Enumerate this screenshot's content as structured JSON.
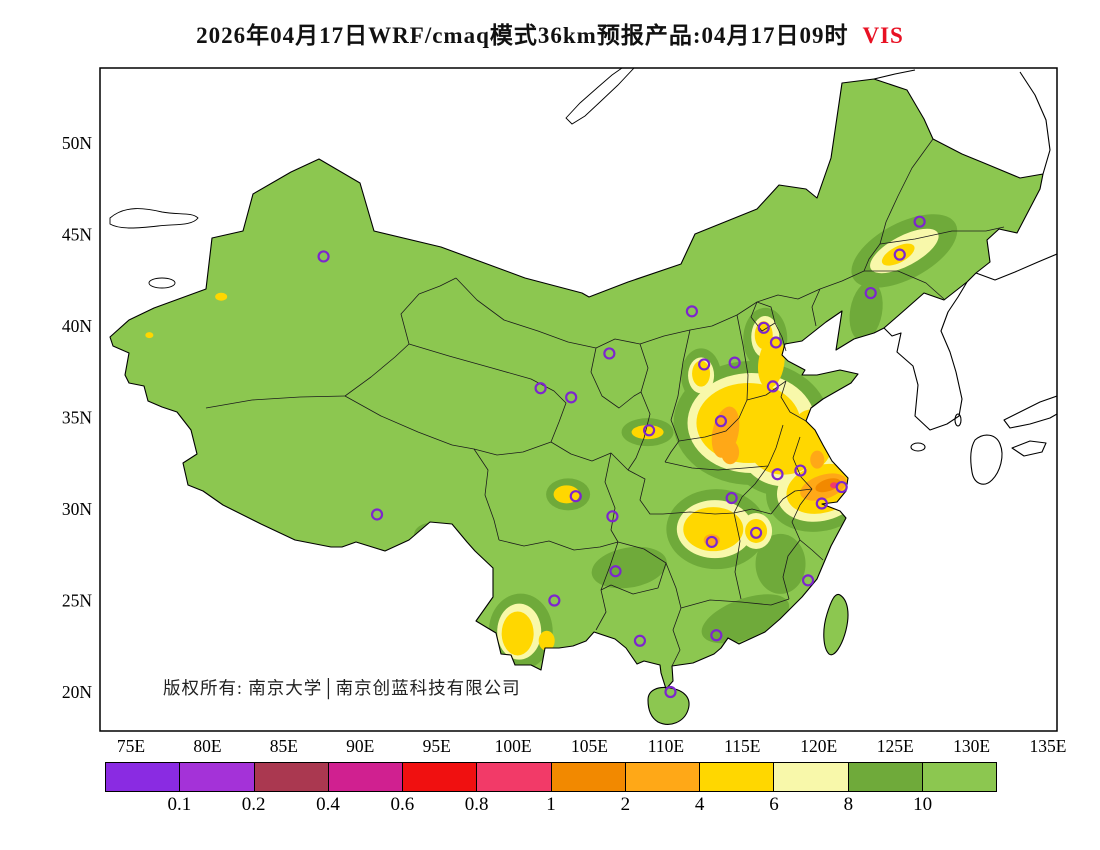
{
  "title": {
    "text": "2026年04月17日WRF/cmaq模式36km预报产品:04月17日09时",
    "variable": "VIS",
    "variable_color": "#e81123"
  },
  "copyright": "版权所有: 南京大学│南京创蓝科技有限公司",
  "axes": {
    "lat": [
      "50N",
      "45N",
      "40N",
      "35N",
      "30N",
      "25N",
      "20N"
    ],
    "lon": [
      "75E",
      "80E",
      "85E",
      "90E",
      "95E",
      "100E",
      "105E",
      "110E",
      "115E",
      "120E",
      "125E",
      "130E",
      "135E"
    ]
  },
  "colorbar": {
    "colors": [
      "#8a2be2",
      "#a432d8",
      "#aa3850",
      "#d02090",
      "#f01010",
      "#f23a68",
      "#f28900",
      "#ffa817",
      "#ffd700",
      "#f8f8aa",
      "#6faa3a",
      "#8cc750"
    ],
    "labels": [
      "0.1",
      "0.2",
      "0.4",
      "0.6",
      "0.8",
      "1",
      "2",
      "4",
      "6",
      "8",
      "10"
    ]
  },
  "map_colors": {
    "base_land": "#8cc750",
    "station_marker": "#7d26cd",
    "levels": {
      "dg": "#6faa3a",
      "py": "#f8f8aa",
      "y": "#ffd700",
      "o": "#ffa817",
      "do": "#f28900",
      "r": "#f23a68"
    }
  },
  "stations": [
    [
      116.4,
      39.9
    ],
    [
      117.2,
      39.1
    ],
    [
      114.5,
      38.0
    ],
    [
      112.5,
      37.9
    ],
    [
      111.7,
      40.8
    ],
    [
      123.4,
      41.8
    ],
    [
      125.3,
      43.9
    ],
    [
      126.6,
      45.7
    ],
    [
      121.5,
      31.2
    ],
    [
      118.8,
      32.1
    ],
    [
      120.2,
      30.3
    ],
    [
      117.3,
      31.9
    ],
    [
      119.3,
      26.1
    ],
    [
      115.9,
      28.7
    ],
    [
      117.0,
      36.7
    ],
    [
      113.6,
      34.8
    ],
    [
      114.3,
      30.6
    ],
    [
      113.0,
      28.2
    ],
    [
      113.3,
      23.1
    ],
    [
      108.3,
      22.8
    ],
    [
      110.3,
      20.0
    ],
    [
      106.5,
      29.6
    ],
    [
      104.1,
      30.7
    ],
    [
      106.7,
      26.6
    ],
    [
      102.7,
      25.0
    ],
    [
      91.1,
      29.7
    ],
    [
      108.9,
      34.3
    ],
    [
      103.8,
      36.1
    ],
    [
      101.8,
      36.6
    ],
    [
      106.3,
      38.5
    ],
    [
      87.6,
      43.8
    ]
  ],
  "contours": [
    [
      115.6,
      34.7,
      78,
      62,
      0,
      "dg"
    ],
    [
      117.8,
      33.2,
      56,
      46,
      0,
      "dg"
    ],
    [
      120.1,
      31.1,
      55,
      42,
      -15,
      "dg"
    ],
    [
      116.5,
      39.3,
      22,
      31,
      0,
      "dg"
    ],
    [
      113.3,
      28.9,
      50,
      40,
      0,
      "dg"
    ],
    [
      125.6,
      44.1,
      58,
      28,
      -28,
      "dg"
    ],
    [
      123.1,
      40.8,
      16,
      30,
      10,
      "dg"
    ],
    [
      112.3,
      37.3,
      20,
      27,
      0,
      "dg"
    ],
    [
      107.6,
      26.8,
      38,
      20,
      -10,
      "dg"
    ],
    [
      115.2,
      24.0,
      46,
      20,
      -20,
      "dg"
    ],
    [
      117.5,
      27.0,
      25,
      30,
      0,
      "dg"
    ],
    [
      100.5,
      23.3,
      32,
      38,
      0,
      "dg"
    ],
    [
      103.6,
      30.8,
      22,
      16,
      0,
      "dg"
    ],
    [
      94.7,
      28.6,
      18,
      12,
      0,
      "dg"
    ],
    [
      108.8,
      34.2,
      26,
      14,
      0,
      "dg"
    ],
    [
      115.6,
      34.7,
      64,
      50,
      0,
      "py"
    ],
    [
      117.8,
      33.2,
      44,
      36,
      0,
      "py"
    ],
    [
      120.1,
      31.1,
      44,
      32,
      -15,
      "py"
    ],
    [
      116.5,
      39.4,
      14,
      21,
      0,
      "py"
    ],
    [
      113.2,
      28.9,
      38,
      29,
      0,
      "py"
    ],
    [
      125.6,
      44.1,
      38,
      15,
      -28,
      "py"
    ],
    [
      112.3,
      37.3,
      13,
      18,
      0,
      "py"
    ],
    [
      100.4,
      23.3,
      22,
      28,
      0,
      "py"
    ],
    [
      115.9,
      28.8,
      16,
      18,
      0,
      "py"
    ],
    [
      115.4,
      34.7,
      52,
      40,
      0,
      "y"
    ],
    [
      117.7,
      33.3,
      34,
      26,
      0,
      "y"
    ],
    [
      119.5,
      33.8,
      22,
      30,
      0,
      "y"
    ],
    [
      116.9,
      38.0,
      13,
      26,
      8,
      "y"
    ],
    [
      116.4,
      39.5,
      9,
      14,
      0,
      "y"
    ],
    [
      120.2,
      31.1,
      36,
      24,
      -15,
      "y"
    ],
    [
      113.1,
      28.9,
      30,
      22,
      0,
      "y"
    ],
    [
      115.9,
      28.8,
      11,
      12,
      0,
      "y"
    ],
    [
      125.2,
      43.9,
      18,
      8,
      -28,
      "y"
    ],
    [
      112.3,
      37.4,
      9,
      13,
      0,
      "y"
    ],
    [
      100.3,
      23.2,
      16,
      22,
      0,
      "y"
    ],
    [
      102.2,
      22.8,
      8,
      10,
      0,
      "y"
    ],
    [
      94.7,
      28.6,
      9,
      6,
      0,
      "y"
    ],
    [
      95.8,
      27.9,
      6,
      5,
      0,
      "y"
    ],
    [
      103.5,
      30.8,
      13,
      9,
      0,
      "y"
    ],
    [
      80.9,
      41.6,
      6,
      4,
      0,
      "y"
    ],
    [
      76.2,
      39.5,
      4,
      3,
      0,
      "y"
    ],
    [
      108.8,
      34.2,
      16,
      7,
      0,
      "y"
    ],
    [
      113.9,
      34.2,
      13,
      26,
      12,
      "o"
    ],
    [
      114.2,
      33.1,
      9,
      12,
      0,
      "o"
    ],
    [
      120.3,
      31.2,
      24,
      12,
      -18,
      "o"
    ],
    [
      113.0,
      28.3,
      8,
      6,
      0,
      "o"
    ],
    [
      119.9,
      32.7,
      7,
      9,
      0,
      "o"
    ],
    [
      120.6,
      31.3,
      13,
      6,
      -18,
      "do"
    ],
    [
      121.0,
      31.3,
      4,
      3,
      0,
      "r"
    ]
  ]
}
